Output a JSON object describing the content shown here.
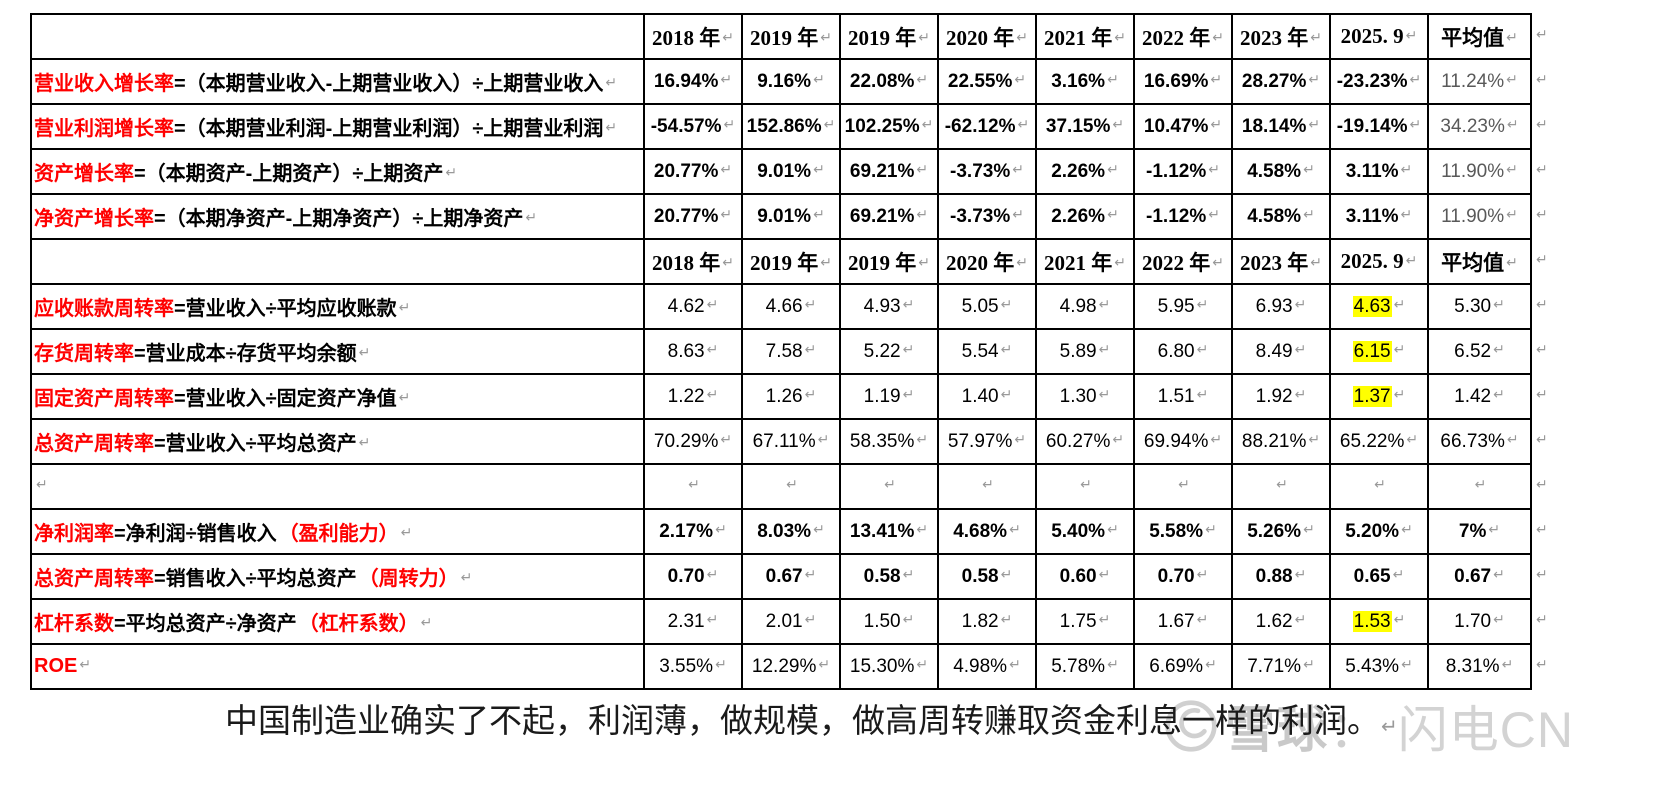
{
  "colors": {
    "header_bg": "#FFA500",
    "highlight": "#FFFF00",
    "label_red": "#FF0000",
    "mark_gray": "#999999"
  },
  "table": {
    "return_mark": "↵",
    "header_years": [
      "2018 年",
      "2019 年",
      "2019 年",
      "2020 年",
      "2021 年",
      "2022 年",
      "2023 年",
      "2025. 9",
      "平均值"
    ],
    "rows": [
      {
        "type": "header"
      },
      {
        "type": "data",
        "red": "营业收入增长率",
        "black": "=（本期营业收入-上期营业收入）÷上期营业收入",
        "red2": "",
        "bold": true,
        "avg_light": true,
        "hl": -1,
        "values": [
          "16.94%",
          "9.16%",
          "22.08%",
          "22.55%",
          "3.16%",
          "16.69%",
          "28.27%",
          "-23.23%",
          "11.24%"
        ]
      },
      {
        "type": "data",
        "red": "营业利润增长率",
        "black": "=（本期营业利润-上期营业利润）÷上期营业利润",
        "red2": "",
        "bold": true,
        "avg_light": true,
        "hl": -1,
        "values": [
          "-54.57%",
          "152.86%",
          "102.25%",
          "-62.12%",
          "37.15%",
          "10.47%",
          "18.14%",
          "-19.14%",
          "34.23%"
        ]
      },
      {
        "type": "data",
        "red": "资产增长率",
        "black": "=（本期资产-上期资产）÷上期资产",
        "red2": "",
        "bold": true,
        "avg_light": true,
        "hl": -1,
        "values": [
          "20.77%",
          "9.01%",
          "69.21%",
          "-3.73%",
          "2.26%",
          "-1.12%",
          "4.58%",
          "3.11%",
          "11.90%"
        ]
      },
      {
        "type": "data",
        "red": "净资产增长率",
        "black": "=（本期净资产-上期净资产）÷上期净资产",
        "red2": "",
        "bold": true,
        "avg_light": true,
        "hl": -1,
        "values": [
          "20.77%",
          "9.01%",
          "69.21%",
          "-3.73%",
          "2.26%",
          "-1.12%",
          "4.58%",
          "3.11%",
          "11.90%"
        ]
      },
      {
        "type": "header"
      },
      {
        "type": "data",
        "red": "应收账款周转率",
        "black": "=营业收入÷平均应收账款",
        "red2": "",
        "bold": false,
        "avg_light": false,
        "hl": 7,
        "values": [
          "4.62",
          "4.66",
          "4.93",
          "5.05",
          "4.98",
          "5.95",
          "6.93",
          "4.63",
          "5.30"
        ]
      },
      {
        "type": "data",
        "red": "存货周转率",
        "black": "=营业成本÷存货平均余额",
        "red2": "",
        "bold": false,
        "avg_light": false,
        "hl": 7,
        "values": [
          "8.63",
          "7.58",
          "5.22",
          "5.54",
          "5.89",
          "6.80",
          "8.49",
          "6.15",
          "6.52"
        ]
      },
      {
        "type": "data",
        "red": "固定资产周转率",
        "black": "=营业收入÷固定资产净值",
        "red2": "",
        "bold": false,
        "avg_light": false,
        "hl": 7,
        "values": [
          "1.22",
          "1.26",
          "1.19",
          "1.40",
          "1.30",
          "1.51",
          "1.92",
          "1.37",
          "1.42"
        ]
      },
      {
        "type": "data",
        "red": "总资产周转率",
        "black": "=营业收入÷平均总资产",
        "red2": "",
        "bold": false,
        "avg_light": false,
        "hl": -1,
        "values": [
          "70.29%",
          "67.11%",
          "58.35%",
          "57.97%",
          "60.27%",
          "69.94%",
          "88.21%",
          "65.22%",
          "66.73%"
        ]
      },
      {
        "type": "empty"
      },
      {
        "type": "data",
        "red": "净利润率",
        "black": "=净利润÷销售收入",
        "red2": "（盈利能力）",
        "bold": true,
        "avg_light": false,
        "hl": -1,
        "values": [
          "2.17%",
          "8.03%",
          "13.41%",
          "4.68%",
          "5.40%",
          "5.58%",
          "5.26%",
          "5.20%",
          "7%"
        ]
      },
      {
        "type": "data",
        "red": "总资产周转率",
        "black": "=销售收入÷平均总资产",
        "red2": "（周转力）",
        "bold": true,
        "avg_light": false,
        "hl": -1,
        "values": [
          "0.70",
          "0.67",
          "0.58",
          "0.58",
          "0.60",
          "0.70",
          "0.88",
          "0.65",
          "0.67"
        ]
      },
      {
        "type": "data",
        "red": "杠杆系数",
        "black": "=平均总资产÷净资产",
        "red2": "（杠杆系数）",
        "bold": false,
        "avg_light": false,
        "hl": 7,
        "values": [
          "2.31",
          "2.01",
          "1.50",
          "1.82",
          "1.75",
          "1.67",
          "1.62",
          "1.53",
          "1.70"
        ]
      },
      {
        "type": "data",
        "red": "ROE",
        "black": "",
        "red2": "",
        "bold": false,
        "avg_light": false,
        "hl": -1,
        "values": [
          "3.55%",
          "12.29%",
          "15.30%",
          "4.98%",
          "5.78%",
          "6.69%",
          "7.71%",
          "5.43%",
          "8.31%"
        ]
      }
    ]
  },
  "caption": {
    "text": "中国制造业确实了不起，利润薄，做规模，做高周转赚取资金利息一样的利润。"
  },
  "watermark": {
    "brand": "雪球",
    "colon": "：",
    "suffix": "闪电CN",
    "logo": "xueqiu-snowball-logo"
  }
}
